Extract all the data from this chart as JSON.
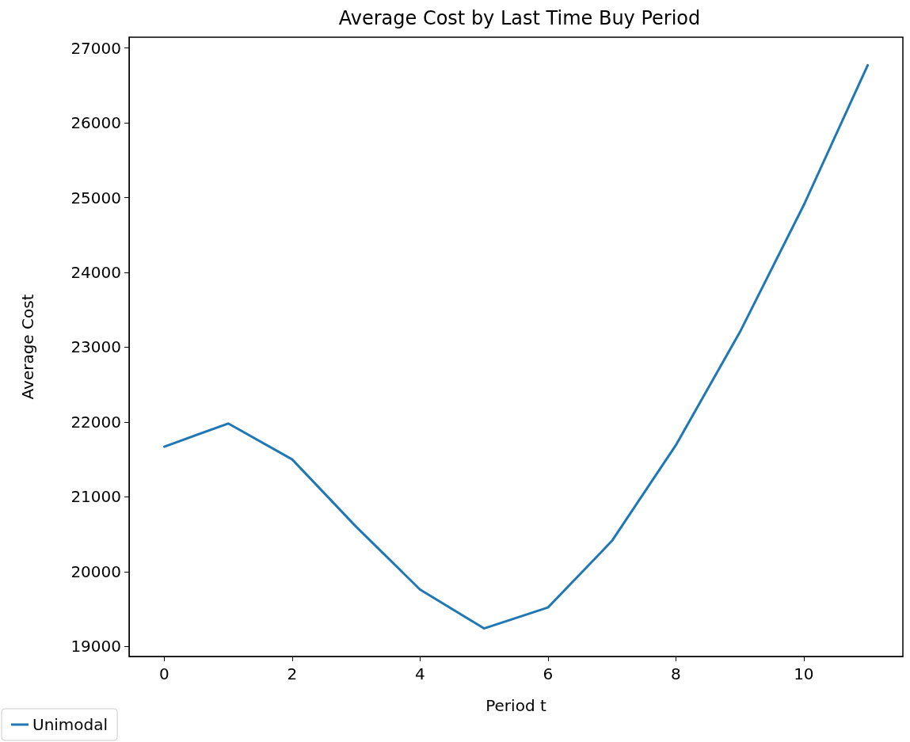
{
  "chart_data": {
    "type": "line",
    "title": "Average Cost by Last Time Buy Period",
    "xlabel": "Period t",
    "ylabel": "Average Cost",
    "x": [
      0,
      1,
      2,
      3,
      4,
      5,
      6,
      7,
      8,
      9,
      10,
      11
    ],
    "series": [
      {
        "name": "Unimodal",
        "color": "#1f77b4",
        "values": [
          21670,
          21980,
          21500,
          20600,
          19760,
          19240,
          19520,
          20410,
          21690,
          23200,
          24900,
          26770
        ]
      }
    ],
    "xlim": [
      -0.55,
      11.55
    ],
    "xticks": [
      0,
      2,
      4,
      6,
      8,
      10
    ],
    "ylim": [
      18865,
      27145
    ],
    "yticks": [
      19000,
      20000,
      21000,
      22000,
      23000,
      24000,
      25000,
      26000,
      27000
    ],
    "grid": false,
    "legend": "bottom left",
    "marker": "none",
    "line_style": "solid"
  }
}
